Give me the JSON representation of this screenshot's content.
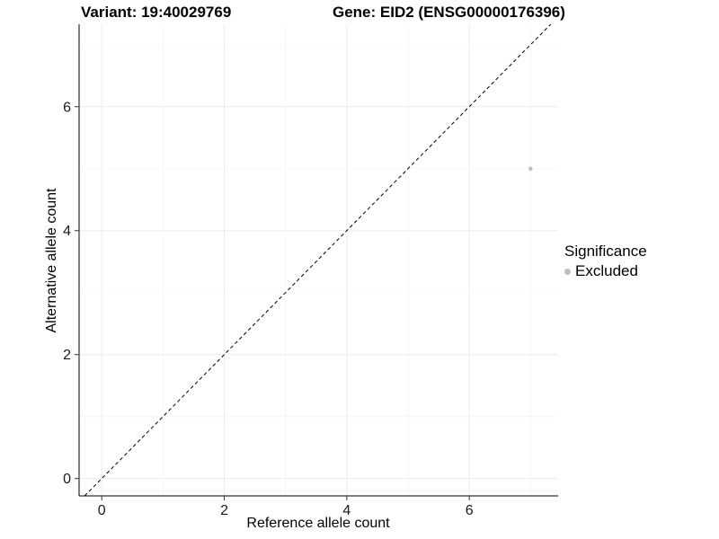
{
  "chart_data": {
    "type": "scatter",
    "title_left": "Variant: 19:40029769",
    "title_right": "Gene: EID2 (ENSG00000176396)",
    "xlabel": "Reference allele count",
    "ylabel": "Alternative allele count",
    "xlim": [
      -0.37,
      7.45
    ],
    "ylim": [
      -0.28,
      7.33
    ],
    "xticks": [
      0,
      2,
      4,
      6
    ],
    "yticks": [
      0,
      2,
      4,
      6
    ],
    "minor_xticks": [
      1,
      3,
      5,
      7
    ],
    "minor_yticks": [
      1,
      3,
      5,
      7
    ],
    "grid": true,
    "identity_line": {
      "slope": 1,
      "intercept": 0,
      "style": "dashed"
    },
    "series": [
      {
        "name": "Excluded",
        "color": "#bdbdbd",
        "points": [
          {
            "x": 7,
            "y": 5
          }
        ]
      }
    ],
    "legend": {
      "title": "Significance",
      "position": "right",
      "entries": [
        {
          "label": "Excluded",
          "color": "#bdbdbd"
        }
      ]
    },
    "colors": {
      "point": "#bdbdbd",
      "grid_major": "#ebebeb",
      "grid_minor": "#f6f6f6",
      "axis": "#000000",
      "tick": "#333333",
      "text": "#1a1a1a",
      "identity_line": "#000000"
    }
  }
}
